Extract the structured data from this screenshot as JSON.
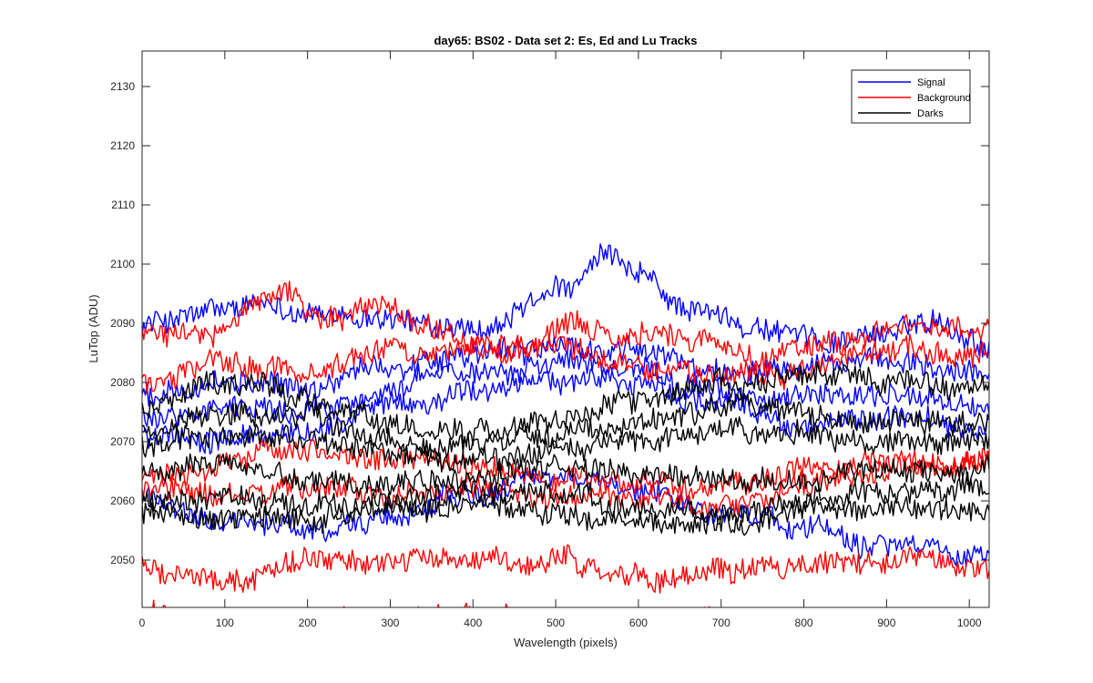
{
  "chart_data": {
    "type": "line",
    "title": "day65: BS02 - Data set 2: Es, Ed and Lu Tracks",
    "xlabel": "Wavelength (pixels)",
    "ylabel": "LuTop (ADU)",
    "xlim": [
      0,
      1024
    ],
    "ylim": [
      2042,
      2136
    ],
    "xticks": [
      0,
      100,
      200,
      300,
      400,
      500,
      600,
      700,
      800,
      900,
      1000
    ],
    "yticks": [
      2050,
      2060,
      2070,
      2080,
      2090,
      2100,
      2110,
      2120,
      2130
    ],
    "grid": false,
    "legend": {
      "placement": "top-right",
      "entries": [
        {
          "name": "Signal",
          "color": "#0000ff"
        },
        {
          "name": "Background",
          "color": "#ff0000"
        },
        {
          "name": "Darks",
          "color": "#000000"
        }
      ]
    },
    "noise_amplitude": 1.8,
    "series": [
      {
        "group": "Signal",
        "color": "#0000ff",
        "x": [
          0,
          100,
          160,
          200,
          260,
          300,
          360,
          420,
          480,
          520,
          560,
          600,
          650,
          700,
          760,
          820,
          880,
          920,
          960,
          1000,
          1024
        ],
        "y": [
          2090,
          2092,
          2093,
          2092,
          2090,
          2091,
          2089,
          2088,
          2094,
          2096,
          2101,
          2098,
          2093,
          2091,
          2089,
          2087,
          2088,
          2089,
          2091,
          2088,
          2086
        ]
      },
      {
        "group": "Signal",
        "color": "#0000ff",
        "x": [
          0,
          100,
          200,
          300,
          400,
          500,
          600,
          700,
          800,
          900,
          1024
        ],
        "y": [
          2078,
          2080,
          2079,
          2083,
          2085,
          2086,
          2085,
          2082,
          2084,
          2083,
          2081
        ]
      },
      {
        "group": "Signal",
        "color": "#0000ff",
        "x": [
          0,
          100,
          200,
          300,
          400,
          500,
          600,
          700,
          800,
          900,
          1024
        ],
        "y": [
          2074,
          2076,
          2075,
          2079,
          2082,
          2084,
          2083,
          2078,
          2077,
          2078,
          2076
        ]
      },
      {
        "group": "Signal",
        "color": "#0000ff",
        "x": [
          0,
          100,
          200,
          300,
          400,
          500,
          600,
          700,
          800,
          900,
          1024
        ],
        "y": [
          2071,
          2070,
          2072,
          2076,
          2078,
          2081,
          2080,
          2076,
          2073,
          2074,
          2072
        ]
      },
      {
        "group": "Signal",
        "color": "#0000ff",
        "x": [
          0,
          100,
          200,
          300,
          400,
          500,
          600,
          700,
          800,
          900,
          1024
        ],
        "y": [
          2060,
          2057,
          2055,
          2057,
          2061,
          2064,
          2062,
          2058,
          2056,
          2053,
          2051
        ]
      },
      {
        "group": "Background",
        "color": "#ff0000",
        "x": [
          0,
          80,
          170,
          220,
          290,
          340,
          400,
          460,
          520,
          580,
          620,
          680,
          740,
          800,
          860,
          920,
          1024
        ],
        "y": [
          2089,
          2088,
          2096,
          2090,
          2093,
          2090,
          2087,
          2086,
          2089,
          2087,
          2088,
          2087,
          2084,
          2086,
          2087,
          2090,
          2089
        ]
      },
      {
        "group": "Background",
        "color": "#ff0000",
        "x": [
          0,
          100,
          200,
          300,
          400,
          500,
          600,
          700,
          800,
          900,
          1024
        ],
        "y": [
          2080,
          2083,
          2082,
          2086,
          2085,
          2087,
          2083,
          2081,
          2082,
          2086,
          2085
        ]
      },
      {
        "group": "Background",
        "color": "#ff0000",
        "x": [
          0,
          100,
          200,
          300,
          400,
          500,
          600,
          700,
          800,
          900,
          1024
        ],
        "y": [
          2064,
          2066,
          2068,
          2067,
          2066,
          2064,
          2063,
          2062,
          2065,
          2067,
          2066
        ]
      },
      {
        "group": "Background",
        "color": "#ff0000",
        "x": [
          0,
          100,
          200,
          300,
          400,
          500,
          600,
          700,
          800,
          900,
          1024
        ],
        "y": [
          2062,
          2060,
          2062,
          2061,
          2063,
          2061,
          2060,
          2059,
          2062,
          2065,
          2068
        ]
      },
      {
        "group": "Background",
        "color": "#ff0000",
        "x": [
          0,
          100,
          200,
          300,
          400,
          500,
          600,
          700,
          800,
          900,
          1024
        ],
        "y": [
          2050,
          2046,
          2050,
          2049,
          2050,
          2050,
          2047,
          2048,
          2049,
          2049,
          2049
        ]
      },
      {
        "group": "Background",
        "color": "#ff0000",
        "x": [
          0,
          100,
          200,
          300,
          400,
          500,
          600,
          700,
          800,
          900,
          1024
        ],
        "y": [
          2041,
          2039,
          2040,
          2039,
          2040,
          2039,
          2039,
          2040,
          2039,
          2039,
          2040
        ]
      },
      {
        "group": "Darks",
        "color": "#000000",
        "x": [
          0,
          100,
          200,
          300,
          400,
          500,
          600,
          700,
          800,
          900,
          1024
        ],
        "y": [
          2076,
          2080,
          2078,
          2073,
          2072,
          2074,
          2077,
          2080,
          2081,
          2080,
          2079
        ]
      },
      {
        "group": "Darks",
        "color": "#000000",
        "x": [
          0,
          100,
          200,
          300,
          400,
          500,
          600,
          700,
          800,
          900,
          1024
        ],
        "y": [
          2073,
          2075,
          2074,
          2071,
          2069,
          2072,
          2074,
          2076,
          2075,
          2074,
          2073
        ]
      },
      {
        "group": "Darks",
        "color": "#000000",
        "x": [
          0,
          100,
          200,
          300,
          400,
          500,
          600,
          700,
          800,
          900,
          1024
        ],
        "y": [
          2069,
          2071,
          2070,
          2068,
          2066,
          2068,
          2070,
          2072,
          2071,
          2070,
          2070
        ]
      },
      {
        "group": "Darks",
        "color": "#000000",
        "x": [
          0,
          100,
          200,
          300,
          400,
          500,
          600,
          700,
          800,
          900,
          1024
        ],
        "y": [
          2065,
          2066,
          2064,
          2063,
          2064,
          2066,
          2065,
          2064,
          2063,
          2065,
          2066
        ]
      },
      {
        "group": "Darks",
        "color": "#000000",
        "x": [
          0,
          100,
          200,
          300,
          400,
          500,
          600,
          700,
          800,
          900,
          1024
        ],
        "y": [
          2060,
          2061,
          2059,
          2060,
          2062,
          2061,
          2059,
          2058,
          2060,
          2061,
          2062
        ]
      },
      {
        "group": "Darks",
        "color": "#000000",
        "x": [
          0,
          100,
          200,
          300,
          400,
          500,
          600,
          700,
          800,
          900,
          1024
        ],
        "y": [
          2058,
          2057,
          2057,
          2058,
          2060,
          2058,
          2057,
          2056,
          2058,
          2059,
          2058
        ]
      }
    ]
  }
}
